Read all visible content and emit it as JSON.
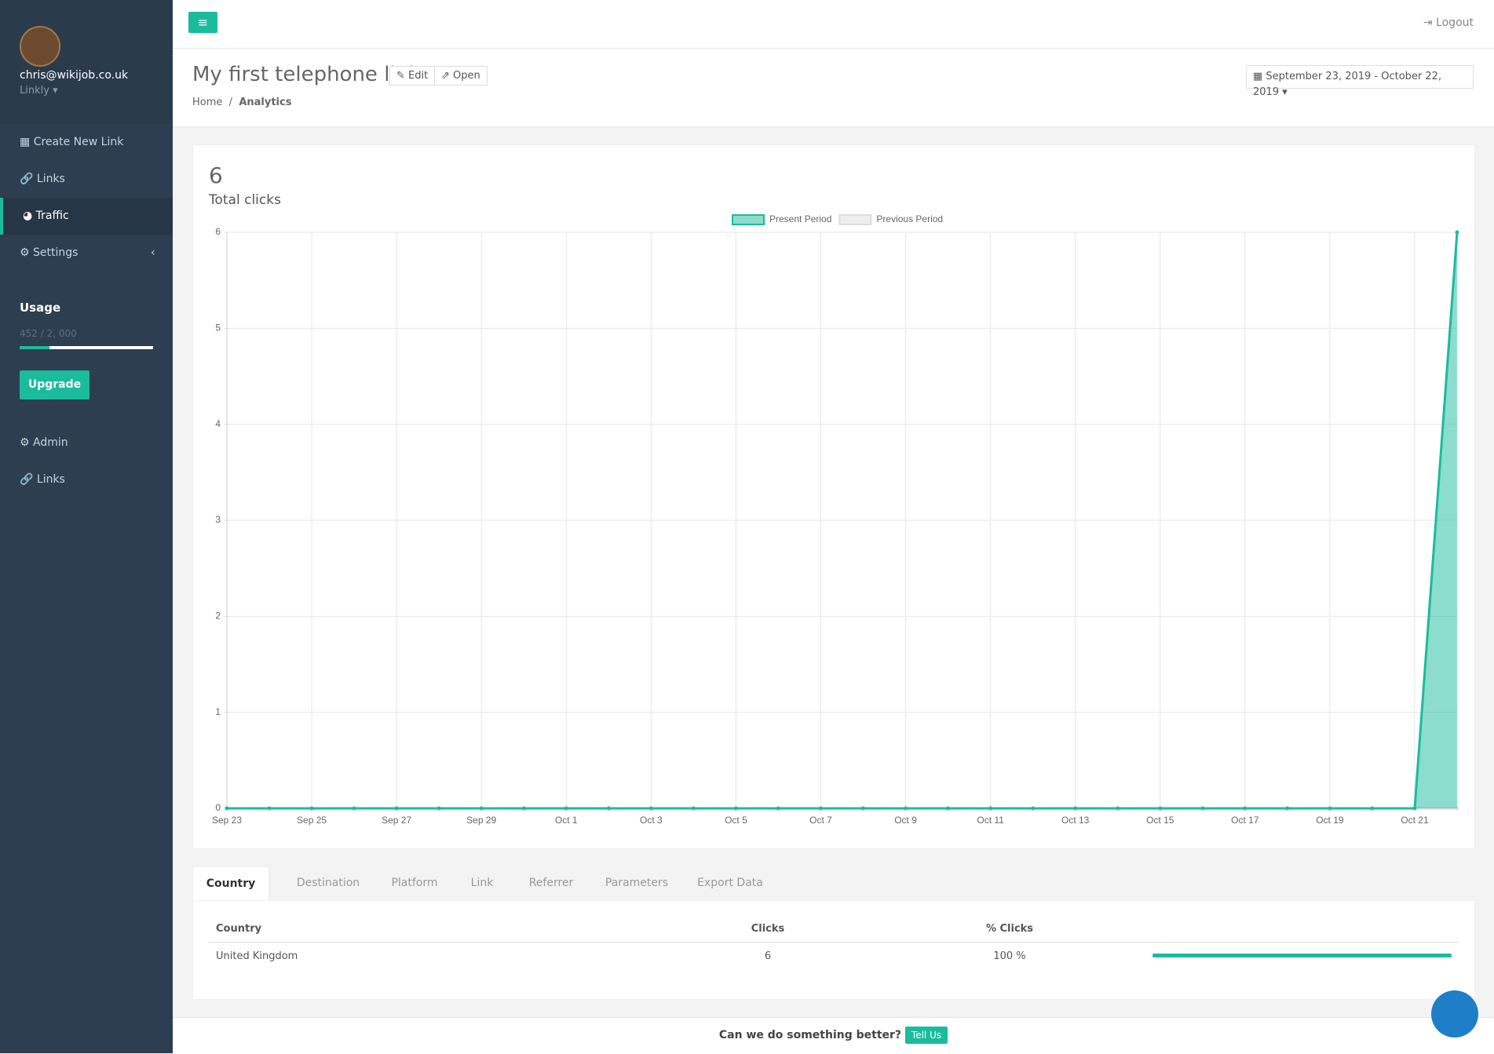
{
  "sidebar": {
    "email": "chris@wikijob.co.uk",
    "account": "Linkly",
    "menu": [
      "Create New Link",
      "Links",
      "Traffic",
      "Settings"
    ],
    "usage_title": "Usage",
    "usage_text": "452 / 2, 000",
    "upgrade": "Upgrade",
    "menu2": [
      "Admin",
      "Links"
    ]
  },
  "header": {
    "logout": "Logout",
    "title": "My first telephone link",
    "edit": "Edit",
    "open": "Open",
    "breadcrumb": [
      "Home",
      "Analytics"
    ],
    "date_range": "September 23, 2019 - October 22, 2019"
  },
  "summary": {
    "total": "6",
    "label": "Total clicks"
  },
  "chart_data": {
    "type": "area",
    "categories": [
      "Sep 23",
      null,
      "Sep 25",
      null,
      "Sep 27",
      null,
      "Sep 29",
      null,
      "Oct 1",
      null,
      "Oct 3",
      null,
      "Oct 5",
      null,
      "Oct 7",
      null,
      "Oct 9",
      null,
      "Oct 11",
      null,
      "Oct 13",
      null,
      "Oct 15",
      null,
      "Oct 17",
      null,
      "Oct 19",
      null,
      "Oct 21",
      null
    ],
    "series": [
      {
        "name": "Present Period",
        "color": "#1abc9c",
        "values": [
          0,
          0,
          0,
          0,
          0,
          0,
          0,
          0,
          0,
          0,
          0,
          0,
          0,
          0,
          0,
          0,
          0,
          0,
          0,
          0,
          0,
          0,
          0,
          0,
          0,
          0,
          0,
          0,
          0,
          6
        ]
      },
      {
        "name": "Previous Period",
        "color": "#dddddd",
        "values": [
          0,
          0,
          0,
          0,
          0,
          0,
          0,
          0,
          0,
          0,
          0,
          0,
          0,
          0,
          0,
          0,
          0,
          0,
          0,
          0,
          0,
          0,
          0,
          0,
          0,
          0,
          0,
          0,
          0,
          0
        ]
      }
    ],
    "ylim": [
      0,
      6
    ],
    "yticks": [
      0,
      1,
      2,
      3,
      4,
      5,
      6
    ],
    "grid": true,
    "legend": "top"
  },
  "tabs": [
    "Country",
    "Destination",
    "Platform",
    "Link",
    "Referrer",
    "Parameters",
    "Export Data"
  ],
  "table": {
    "columns": [
      "Country",
      "Clicks",
      "% Clicks"
    ],
    "rows": [
      [
        "United Kingdom",
        "6",
        "100 %"
      ]
    ]
  },
  "footer": {
    "question": "Can we do something better?",
    "button": "Tell Us"
  }
}
